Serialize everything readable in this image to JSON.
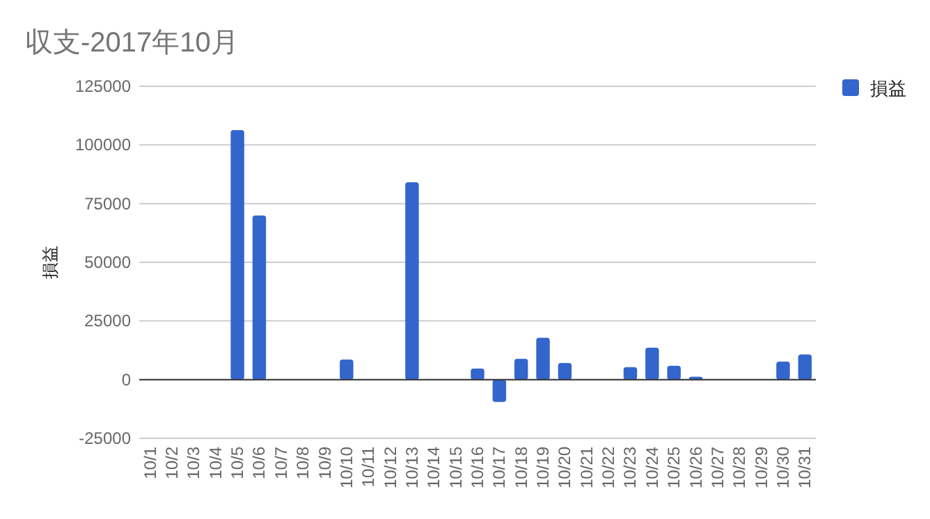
{
  "chart_data": {
    "type": "bar",
    "title": "収支-2017年10月",
    "ylabel": "損益",
    "categories": [
      "10/1",
      "10/2",
      "10/3",
      "10/4",
      "10/5",
      "10/6",
      "10/7",
      "10/8",
      "10/9",
      "10/10",
      "10/11",
      "10/12",
      "10/13",
      "10/14",
      "10/15",
      "10/16",
      "10/17",
      "10/18",
      "10/19",
      "10/20",
      "10/21",
      "10/22",
      "10/23",
      "10/24",
      "10/25",
      "10/26",
      "10/27",
      "10/28",
      "10/29",
      "10/30",
      "10/31"
    ],
    "series": [
      {
        "name": "損益",
        "color": "#3366cc",
        "values": [
          0,
          0,
          0,
          0,
          106300,
          69900,
          0,
          0,
          0,
          8600,
          0,
          0,
          84100,
          0,
          0,
          4700,
          -9500,
          8900,
          17800,
          7100,
          0,
          0,
          5300,
          13600,
          5900,
          1200,
          0,
          0,
          0,
          7700,
          10700
        ]
      }
    ],
    "ylim": [
      -25000,
      125000
    ],
    "yticks": [
      -25000,
      0,
      25000,
      50000,
      75000,
      100000,
      125000
    ],
    "grid": "y",
    "legend": "top right"
  }
}
